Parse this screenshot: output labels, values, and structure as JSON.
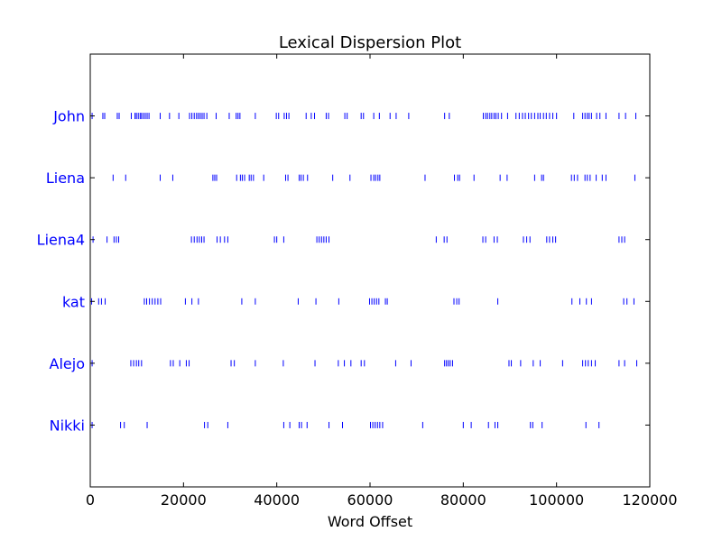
{
  "chart_data": {
    "type": "scatter",
    "title": "Lexical Dispersion Plot",
    "xlabel": "Word Offset",
    "ylabel": "",
    "xlim": [
      0,
      120000
    ],
    "xticks": [
      0,
      20000,
      40000,
      60000,
      80000,
      100000,
      120000
    ],
    "xtick_labels": [
      "0",
      "20000",
      "40000",
      "60000",
      "80000",
      "100000",
      "120000"
    ],
    "categories": [
      "John",
      "Liena",
      "Liena4",
      "kat",
      "Alejo",
      "Nikki"
    ],
    "grid": false,
    "marker": "|",
    "colors": {
      "marker": "#0000ff",
      "category_label": "#0000ff",
      "axes": "#000000"
    },
    "series": [
      {
        "name": "John",
        "x": [
          400,
          2700,
          3100,
          5800,
          6200,
          8800,
          9600,
          9900,
          10300,
          10700,
          11000,
          11400,
          11800,
          12200,
          12600,
          15000,
          17000,
          19000,
          21300,
          21800,
          22300,
          22800,
          23200,
          23600,
          24000,
          24400,
          25000,
          27000,
          29800,
          31300,
          31700,
          32100,
          35400,
          39900,
          40400,
          41600,
          42100,
          42600,
          46300,
          47400,
          48100,
          50600,
          51100,
          54600,
          55100,
          58100,
          58600,
          60800,
          62000,
          64300,
          65600,
          68300,
          76000,
          77000,
          84300,
          84800,
          85200,
          85700,
          86100,
          86600,
          87000,
          87500,
          88200,
          89500,
          91300,
          92000,
          92700,
          93300,
          94000,
          94600,
          95300,
          96000,
          96500,
          97200,
          97800,
          98500,
          99200,
          100000,
          103700,
          105600,
          106100,
          106600,
          107000,
          107500,
          108600,
          109300,
          110600,
          113400,
          114800,
          117000
        ]
      },
      {
        "name": "Liena",
        "x": [
          4900,
          7600,
          15000,
          17700,
          26300,
          26700,
          27100,
          31400,
          32200,
          32600,
          33100,
          34100,
          34500,
          35000,
          37200,
          41900,
          42400,
          44800,
          45200,
          45700,
          46600,
          52000,
          55700,
          60200,
          60800,
          61200,
          61700,
          62100,
          71800,
          78100,
          78800,
          79200,
          82300,
          87900,
          89400,
          95300,
          96800,
          97200,
          103200,
          103800,
          104500,
          106100,
          106600,
          107200,
          108500,
          109800,
          110600,
          116800
        ]
      },
      {
        "name": "Liena4",
        "x": [
          600,
          3600,
          5100,
          5600,
          6100,
          21700,
          22300,
          22900,
          23400,
          23900,
          24400,
          27200,
          27900,
          28800,
          29500,
          39500,
          40000,
          41500,
          48600,
          49100,
          49600,
          50100,
          50600,
          51200,
          74200,
          75900,
          76500,
          84200,
          84800,
          86600,
          87300,
          92900,
          93600,
          94300,
          97900,
          98500,
          99200,
          99800,
          113400,
          114000,
          114600
        ]
      },
      {
        "name": "kat",
        "x": [
          300,
          1800,
          2400,
          3200,
          11600,
          12100,
          12700,
          13300,
          13900,
          14500,
          15100,
          20400,
          21800,
          23200,
          32500,
          35400,
          44600,
          48400,
          53300,
          59900,
          60400,
          60900,
          61400,
          61900,
          63300,
          63700,
          78000,
          78600,
          79100,
          87400,
          103300,
          105000,
          106400,
          107500,
          114400,
          115100,
          116600
        ]
      },
      {
        "name": "Alejo",
        "x": [
          400,
          8700,
          9300,
          9900,
          10400,
          11000,
          17200,
          17800,
          19200,
          20600,
          21200,
          30200,
          30900,
          35400,
          41400,
          48200,
          53200,
          54500,
          55900,
          58100,
          58800,
          65500,
          68800,
          76000,
          76400,
          76800,
          77200,
          77700,
          89800,
          90300,
          92300,
          95000,
          96500,
          101300,
          105600,
          106200,
          106800,
          107500,
          108300,
          113400,
          114600,
          117200
        ]
      },
      {
        "name": "Nikki",
        "x": [
          400,
          6500,
          7300,
          12200,
          24500,
          25200,
          29500,
          41500,
          42800,
          44800,
          45300,
          46500,
          51200,
          54100,
          60100,
          60600,
          61100,
          61600,
          62100,
          62700,
          71300,
          80000,
          81700,
          85400,
          86800,
          87400,
          94400,
          94900,
          96900,
          106300,
          109100
        ]
      }
    ]
  }
}
